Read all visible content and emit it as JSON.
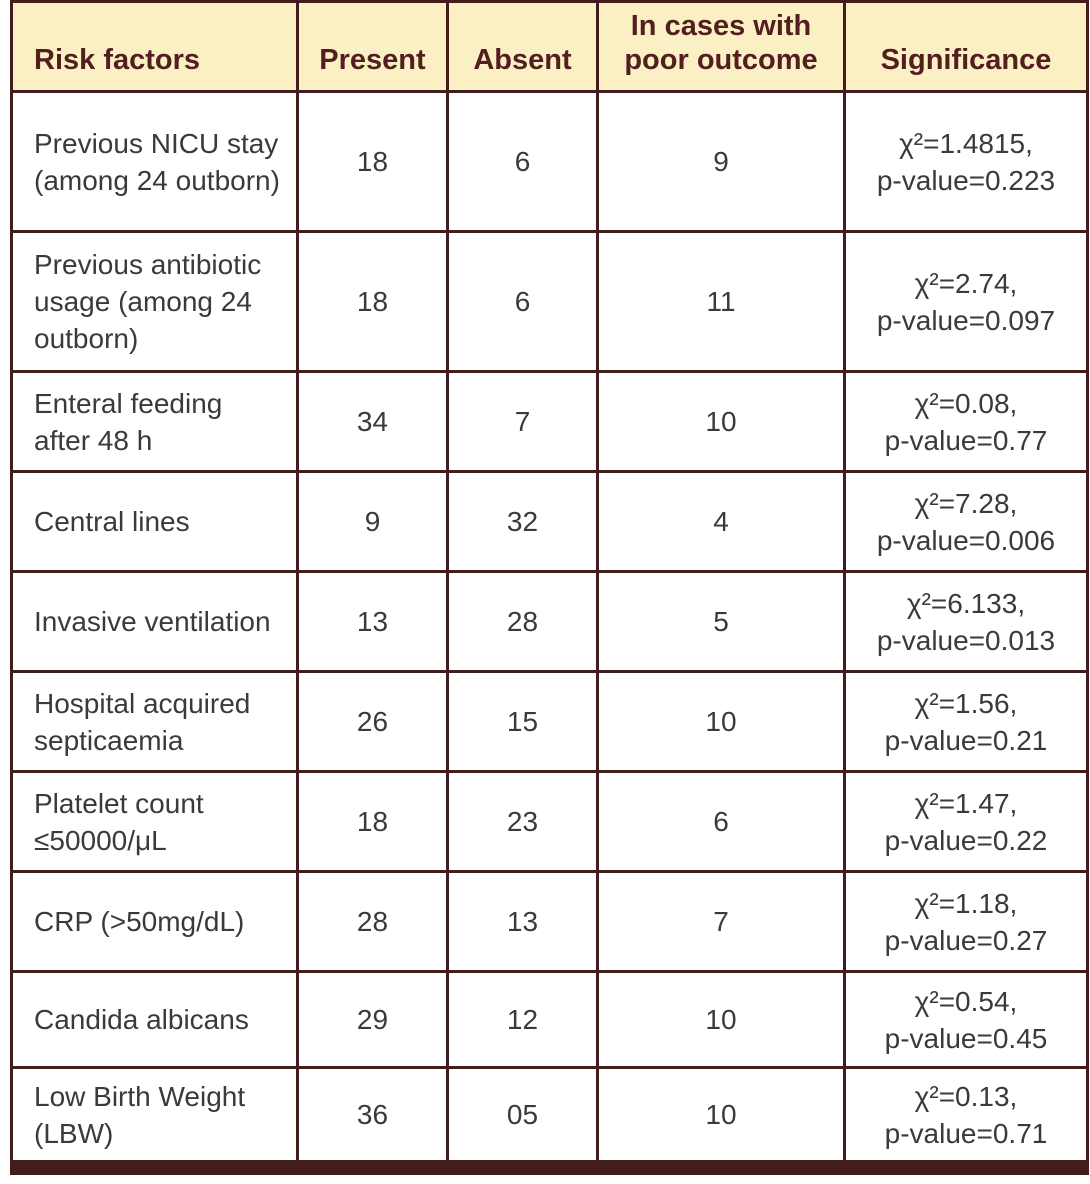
{
  "table": {
    "columns": [
      {
        "label": "Risk factors"
      },
      {
        "label": "Present"
      },
      {
        "label": "Absent"
      },
      {
        "label": "In cases with poor outcome"
      },
      {
        "label": "Significance"
      }
    ],
    "rows": [
      {
        "risk_factor": "Previous NICU stay (among 24 outborn)",
        "present": "18",
        "absent": "6",
        "poor_outcome": "9",
        "chi_square": "χ²=1.4815,",
        "p_value": "p-value=0.223"
      },
      {
        "risk_factor": "Previous antibiotic usage (among 24 outborn)",
        "present": "18",
        "absent": "6",
        "poor_outcome": "11",
        "chi_square": "χ²=2.74,",
        "p_value": "p-value=0.097"
      },
      {
        "risk_factor": "Enteral feeding after 48 h",
        "present": "34",
        "absent": "7",
        "poor_outcome": "10",
        "chi_square": "χ²=0.08,",
        "p_value": "p-value=0.77"
      },
      {
        "risk_factor": "Central lines",
        "present": "9",
        "absent": "32",
        "poor_outcome": "4",
        "chi_square": "χ²=7.28,",
        "p_value": "p-value=0.006"
      },
      {
        "risk_factor": "Invasive ventilation",
        "present": "13",
        "absent": "28",
        "poor_outcome": "5",
        "chi_square": "χ²=6.133,",
        "p_value": "p-value=0.013"
      },
      {
        "risk_factor": "Hospital acquired septicaemia",
        "present": "26",
        "absent": "15",
        "poor_outcome": "10",
        "chi_square": "χ²=1.56,",
        "p_value": "p-value=0.21"
      },
      {
        "risk_factor": "Platelet count ≤50000/μL",
        "present": "18",
        "absent": "23",
        "poor_outcome": "6",
        "chi_square": "χ²=1.47,",
        "p_value": "p-value=0.22"
      },
      {
        "risk_factor": "CRP (>50mg/dL)",
        "present": "28",
        "absent": "13",
        "poor_outcome": "7",
        "chi_square": "χ²=1.18,",
        "p_value": "p-value=0.27"
      },
      {
        "risk_factor": "Candida albicans",
        "present": "29",
        "absent": "12",
        "poor_outcome": "10",
        "chi_square": "χ²=0.54,",
        "p_value": "p-value=0.45"
      },
      {
        "risk_factor": "Low Birth Weight (LBW)",
        "present": "36",
        "absent": "05",
        "poor_outcome": "10",
        "chi_square": "χ²=0.13,",
        "p_value": "p-value=0.71"
      }
    ]
  },
  "colors": {
    "header_background": "#fbf0c4",
    "header_text": "#521e20",
    "border": "#421d1b",
    "body_text": "#3a3a3a",
    "body_background": "#ffffff"
  }
}
